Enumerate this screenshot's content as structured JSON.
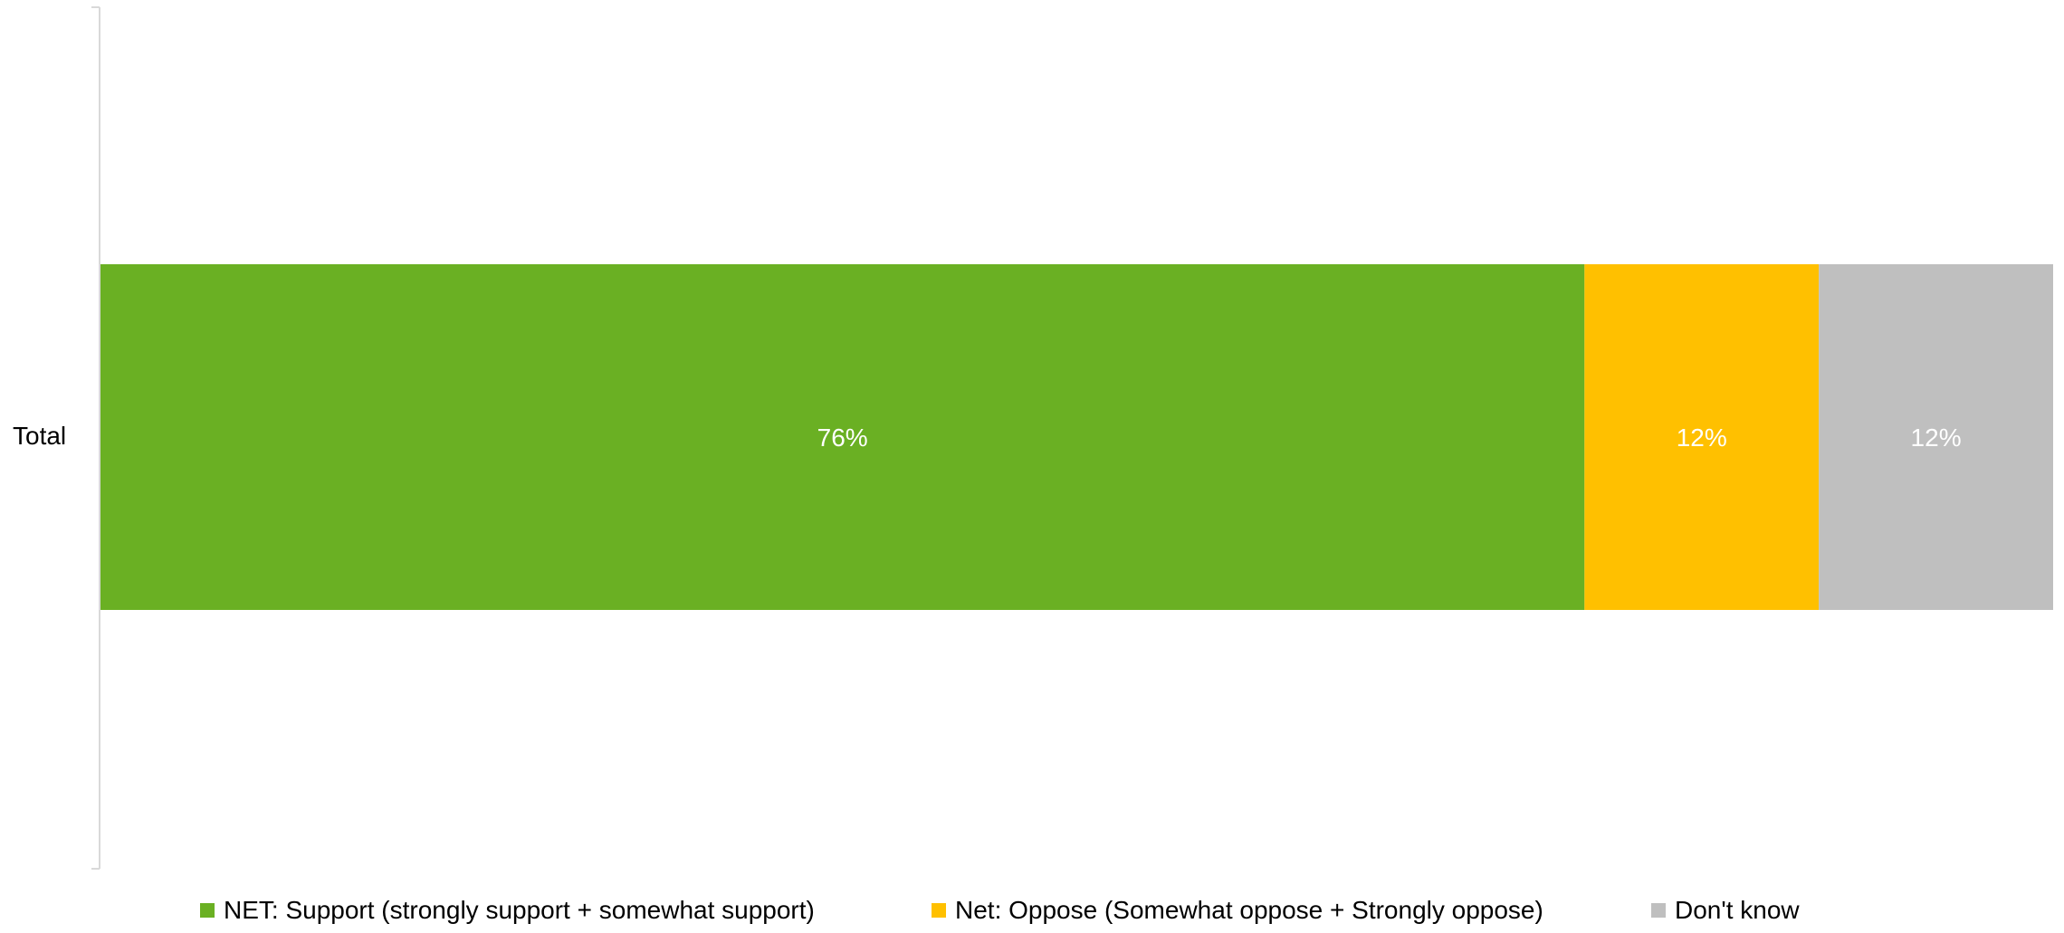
{
  "chart_data": {
    "type": "bar",
    "orientation": "horizontal",
    "stacked": true,
    "categories": [
      "Total"
    ],
    "series": [
      {
        "name": "NET: Support (strongly support + somewhat support)",
        "values": [
          76
        ],
        "label": "76%",
        "color": "#6AB023"
      },
      {
        "name": "Net: Oppose (Somewhat oppose + Strongly oppose)",
        "values": [
          12
        ],
        "label": "12%",
        "color": "#FFC000"
      },
      {
        "name": "Don't know",
        "values": [
          12
        ],
        "label": "12%",
        "color": "#BFBFBF"
      }
    ],
    "xlim": [
      0,
      100
    ],
    "grid": false,
    "legend": "bottom",
    "data_label_color": "#FFFFFF"
  }
}
